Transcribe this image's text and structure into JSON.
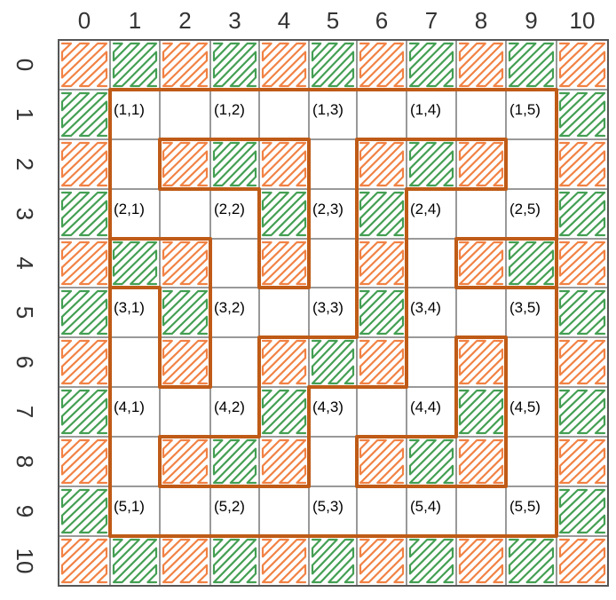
{
  "grid": {
    "columns": [
      "0",
      "1",
      "2",
      "3",
      "4",
      "5",
      "6",
      "7",
      "8",
      "9",
      "10"
    ],
    "rows": [
      "0",
      "1",
      "2",
      "3",
      "4",
      "5",
      "6",
      "7",
      "8",
      "9",
      "10"
    ]
  },
  "colors": {
    "orange": "#f07b3a",
    "green": "#3a9a4a",
    "wall": "#bf5b17",
    "frame": "#555555",
    "grid_line": "#333333"
  },
  "cell_labels": [
    {
      "text": "(1,1)",
      "row": 1,
      "col": 1
    },
    {
      "text": "(1,2)",
      "row": 1,
      "col": 3
    },
    {
      "text": "(1,3)",
      "row": 1,
      "col": 5
    },
    {
      "text": "(1,4)",
      "row": 1,
      "col": 7
    },
    {
      "text": "(1,5)",
      "row": 1,
      "col": 9
    },
    {
      "text": "(2,1)",
      "row": 3,
      "col": 1
    },
    {
      "text": "(2,2)",
      "row": 3,
      "col": 3
    },
    {
      "text": "(2,3)",
      "row": 3,
      "col": 5
    },
    {
      "text": "(2,4)",
      "row": 3,
      "col": 7
    },
    {
      "text": "(2,5)",
      "row": 3,
      "col": 9
    },
    {
      "text": "(3,1)",
      "row": 5,
      "col": 1
    },
    {
      "text": "(3,2)",
      "row": 5,
      "col": 3
    },
    {
      "text": "(3,3)",
      "row": 5,
      "col": 5
    },
    {
      "text": "(3,4)",
      "row": 5,
      "col": 7
    },
    {
      "text": "(3,5)",
      "row": 5,
      "col": 9
    },
    {
      "text": "(4,1)",
      "row": 7,
      "col": 1
    },
    {
      "text": "(4,2)",
      "row": 7,
      "col": 3
    },
    {
      "text": "(4,3)",
      "row": 7,
      "col": 5
    },
    {
      "text": "(4,4)",
      "row": 7,
      "col": 7
    },
    {
      "text": "(4,5)",
      "row": 7,
      "col": 9
    },
    {
      "text": "(5,1)",
      "row": 9,
      "col": 1
    },
    {
      "text": "(5,2)",
      "row": 9,
      "col": 3
    },
    {
      "text": "(5,3)",
      "row": 9,
      "col": 5
    },
    {
      "text": "(5,4)",
      "row": 9,
      "col": 7
    },
    {
      "text": "(5,5)",
      "row": 9,
      "col": 9
    }
  ],
  "hatched_cells": [
    "OGOGOGOGOGO",
    "G.........G",
    "O.OGO.OGO.O",
    "G...G.G...G",
    "OGO.O.O.OGO",
    "G.G...G...G",
    "O.O.OGO.O.O",
    "G...G...G.G",
    "O.OGO.OGO.O",
    "G.........G",
    "OGOGOGOGOGO"
  ],
  "walls": [
    [
      [
        1,
        1
      ],
      [
        10,
        1
      ],
      [
        10,
        10
      ],
      [
        1,
        10
      ],
      [
        1,
        1
      ]
    ],
    [
      [
        2,
        3
      ],
      [
        2,
        2
      ],
      [
        5,
        2
      ],
      [
        5,
        5
      ],
      [
        4,
        5
      ],
      [
        4,
        3
      ],
      [
        2,
        3
      ]
    ],
    [
      [
        6,
        6
      ],
      [
        6,
        2
      ],
      [
        9,
        2
      ],
      [
        9,
        3
      ],
      [
        7,
        3
      ],
      [
        7,
        7
      ],
      [
        5,
        7
      ],
      [
        5,
        9
      ],
      [
        2,
        9
      ],
      [
        2,
        8
      ],
      [
        4,
        8
      ],
      [
        4,
        6
      ],
      [
        6,
        6
      ]
    ],
    [
      [
        1,
        4
      ],
      [
        3,
        4
      ],
      [
        3,
        7
      ],
      [
        2,
        7
      ],
      [
        2,
        5
      ],
      [
        1,
        5
      ]
    ],
    [
      [
        10,
        5
      ],
      [
        8,
        5
      ],
      [
        8,
        4
      ],
      [
        10,
        4
      ]
    ],
    [
      [
        8,
        6
      ],
      [
        9,
        6
      ],
      [
        9,
        9
      ],
      [
        6,
        9
      ],
      [
        6,
        8
      ],
      [
        8,
        8
      ],
      [
        8,
        6
      ]
    ]
  ]
}
